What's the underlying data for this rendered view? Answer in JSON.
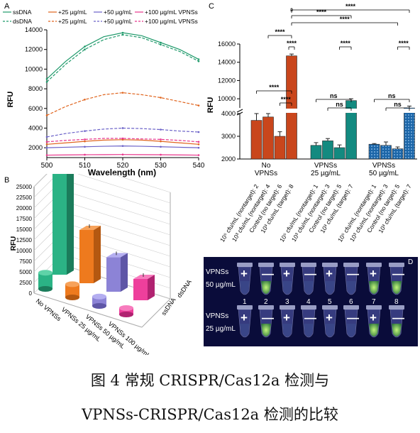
{
  "panel_a": {
    "letter": "A",
    "legend": [
      {
        "label": "ssDNA",
        "color": "#1f9a6b",
        "dash": false
      },
      {
        "label": "+25 µg/mL",
        "color": "#e0641d",
        "dash": false
      },
      {
        "label": "+50 µg/mL",
        "color": "#6b62c8",
        "dash": false
      },
      {
        "label": "+100 µg/mL VPNSs",
        "color": "#e8368c",
        "dash": false
      },
      {
        "label": "dsDNA",
        "color": "#1f9a6b",
        "dash": true
      },
      {
        "label": "+25 µg/mL",
        "color": "#e0641d",
        "dash": true
      },
      {
        "label": "+50 µg/mL",
        "color": "#6b62c8",
        "dash": true
      },
      {
        "label": "+100 µg/mL VPNSs",
        "color": "#e8368c",
        "dash": true
      }
    ],
    "xlabel": "Wavelength (nm)",
    "ylabel": "RFU",
    "xticks": [
      "500",
      "510",
      "520",
      "530",
      "540"
    ],
    "yticks": [
      "2000",
      "4000",
      "6000",
      "8000",
      "10000",
      "12000",
      "14000"
    ]
  },
  "panel_b": {
    "letter": "B",
    "ylabel": "RFU",
    "zticks": [
      "0",
      "2500",
      "5000",
      "7500",
      "10000",
      "12500",
      "15000",
      "17500",
      "20000",
      "22500",
      "25000"
    ],
    "xcats": [
      "No VPNSs",
      "VPNSs 25 µg/mL",
      "VPNSs 50 µg/mL",
      "VPNSs 100 µg/mL"
    ],
    "depth_cats": [
      "ssDNA",
      "dsDNA"
    ]
  },
  "panel_c": {
    "letter": "C",
    "ylabel": "RFU",
    "yticks_low": [
      "2000",
      "3000",
      "4000"
    ],
    "yticks_high": [
      "10000",
      "12000",
      "14000",
      "16000"
    ],
    "group_labels": [
      [
        "No",
        "VPNSs"
      ],
      [
        "VPNSs",
        "25 µg/mL"
      ],
      [
        "VPNSs",
        "50 µg/mL"
      ]
    ],
    "xticklabels": [
      "10⁵ cfu/mL (nontarget): 2",
      "10³ cfu/mL (nontarget): 4",
      "Control (no target): 6",
      "10³ cfu/mL (target): 8",
      "10⁵ cfu/mL (nontarget): 1",
      "10³ cfu/mL (nontarget): 3",
      "Control (no target): 5",
      "10³ cfu/mL (target): 7",
      "10⁵ cfu/mL (nontarget): 1",
      "10³ cfu/mL (nontarget): 3",
      "Control (no target): 5",
      "10³ cfu/mL (target): 7"
    ],
    "sig": {
      "four": "****",
      "ns": "ns"
    }
  },
  "panel_d": {
    "letter": "D",
    "row1": [
      "VPNSs",
      "50 µg/mL"
    ],
    "row2": [
      "VPNSs",
      "25 µg/mL"
    ],
    "numbers": [
      "1",
      "2",
      "3",
      "4",
      "5",
      "6",
      "7",
      "8"
    ],
    "signs": [
      "+",
      "—",
      "+",
      "—",
      "+",
      "—",
      "+",
      "—"
    ]
  },
  "caption": {
    "line1": "图 4  常规 CRISPR/Cas12a 检测与",
    "line2": "VPNSs-CRISPR/Cas12a 检测的比较"
  },
  "chart_data": [
    {
      "type": "line",
      "title": "",
      "xlabel": "Wavelength (nm)",
      "ylabel": "RFU",
      "xlim": [
        500,
        540
      ],
      "ylim": [
        1000,
        14000
      ],
      "x": [
        500,
        505,
        510,
        515,
        520,
        525,
        530,
        535,
        540
      ],
      "series": [
        {
          "name": "ssDNA",
          "values": [
            9000,
            10800,
            12300,
            13300,
            13700,
            13400,
            12700,
            12000,
            11000
          ]
        },
        {
          "name": "+25 µg/mL",
          "values": [
            2350,
            2500,
            2650,
            2780,
            2820,
            2780,
            2650,
            2500,
            2350
          ]
        },
        {
          "name": "+50 µg/mL",
          "values": [
            2000,
            2050,
            2100,
            2150,
            2180,
            2150,
            2100,
            2050,
            2000
          ]
        },
        {
          "name": "+100 µg/mL VPNSs",
          "values": [
            1250,
            1270,
            1290,
            1300,
            1310,
            1300,
            1290,
            1270,
            1250
          ]
        },
        {
          "name": "dsDNA",
          "values": [
            8700,
            10500,
            12000,
            13000,
            13500,
            13200,
            12500,
            11800,
            10800
          ]
        },
        {
          "name": "+25 µg/mL",
          "values": [
            5300,
            6200,
            6900,
            7400,
            7600,
            7400,
            7100,
            6700,
            6300
          ]
        },
        {
          "name": "+50 µg/mL",
          "values": [
            3100,
            3450,
            3700,
            3900,
            4000,
            3950,
            3850,
            3700,
            3600
          ]
        },
        {
          "name": "+100 µg/mL VPNSs",
          "values": [
            2600,
            2750,
            2850,
            2950,
            2950,
            2900,
            2850,
            2750,
            2600
          ]
        }
      ]
    },
    {
      "type": "bar",
      "title": "",
      "ylabel": "RFU",
      "ylim": [
        0,
        25000
      ],
      "categories": [
        "No VPNSs",
        "VPNSs 25 µg/mL",
        "VPNSs 50 µg/mL",
        "VPNSs 100 µg/mL"
      ],
      "series": [
        {
          "name": "ssDNA",
          "values": [
            3800,
            3100,
            2200,
            1500
          ]
        },
        {
          "name": "dsDNA",
          "values": [
            24000,
            12500,
            8100,
            5000
          ]
        }
      ]
    },
    {
      "type": "bar",
      "title": "",
      "ylabel": "RFU",
      "ylim": [
        2000,
        16000
      ],
      "categories": [
        "10⁵ cfu/mL (nontarget)",
        "10³ cfu/mL (nontarget)",
        "Control (no target)",
        "10³ cfu/mL (target)"
      ],
      "series": [
        {
          "name": "No VPNSs",
          "values": [
            3700,
            3850,
            3000,
            14700
          ],
          "errors": [
            300,
            150,
            200,
            200
          ]
        },
        {
          "name": "VPNSs 25 µg/mL",
          "values": [
            2600,
            2800,
            2500,
            9800
          ],
          "errors": [
            120,
            100,
            120,
            200
          ]
        },
        {
          "name": "VPNSs 50 µg/mL",
          "values": [
            2650,
            2600,
            2450,
            8900
          ],
          "errors": [
            30,
            150,
            80,
            300
          ]
        }
      ]
    }
  ]
}
